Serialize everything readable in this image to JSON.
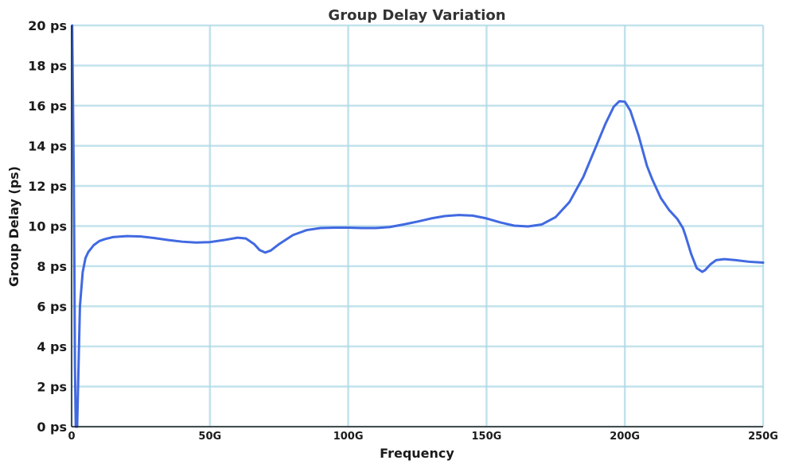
{
  "chart_data": {
    "type": "line",
    "title": "Group Delay Variation",
    "xlabel": "Frequency",
    "ylabel": "Group Delay (ps)",
    "xlim": [
      0,
      250
    ],
    "ylim": [
      0,
      20
    ],
    "x_ticks": [
      0,
      50,
      100,
      150,
      200,
      250
    ],
    "x_tick_labels": [
      "0",
      "50G",
      "100G",
      "150G",
      "200G",
      "250G"
    ],
    "y_ticks": [
      0,
      2,
      4,
      6,
      8,
      10,
      12,
      14,
      16,
      18,
      20
    ],
    "y_tick_labels": [
      "0 ps",
      "2 ps",
      "4 ps",
      "6 ps",
      "8 ps",
      "10 ps",
      "12 ps",
      "14 ps",
      "16 ps",
      "18 ps",
      "20 ps"
    ],
    "grid": true,
    "series": [
      {
        "color": "#4169e1",
        "x": [
          0.2,
          0.5,
          0.8,
          1.0,
          1.2,
          1.5,
          2.0,
          2.5,
          3.0,
          4.0,
          5.0,
          6.0,
          8.0,
          10.0,
          12.0,
          15.0,
          20.0,
          25.0,
          30.0,
          35.0,
          40.0,
          45.0,
          50.0,
          55.0,
          60.0,
          63.0,
          66.0,
          68.0,
          70.0,
          72.0,
          75.0,
          80.0,
          85.0,
          90.0,
          95.0,
          100.0,
          105.0,
          110.0,
          115.0,
          120.0,
          125.0,
          130.0,
          135.0,
          140.0,
          145.0,
          150.0,
          155.0,
          160.0,
          165.0,
          170.0,
          175.0,
          180.0,
          185.0,
          190.0,
          193.0,
          196.0,
          198.0,
          200.0,
          202.0,
          205.0,
          208.0,
          210.0,
          213.0,
          216.0,
          219.0,
          221.0,
          222.0,
          224.0,
          226.0,
          228.0,
          229.0,
          231.0,
          233.0,
          236.0,
          240.0,
          245.0,
          250.0
        ],
        "y": [
          20.0,
          16.0,
          12.0,
          8.0,
          3.0,
          0.0,
          0.0,
          3.0,
          6.0,
          7.7,
          8.4,
          8.7,
          9.05,
          9.25,
          9.35,
          9.45,
          9.5,
          9.48,
          9.4,
          9.3,
          9.22,
          9.18,
          9.2,
          9.3,
          9.42,
          9.38,
          9.1,
          8.8,
          8.68,
          8.78,
          9.1,
          9.55,
          9.8,
          9.9,
          9.92,
          9.92,
          9.9,
          9.9,
          9.95,
          10.08,
          10.22,
          10.38,
          10.5,
          10.55,
          10.52,
          10.38,
          10.18,
          10.02,
          9.98,
          10.08,
          10.45,
          11.2,
          12.45,
          14.1,
          15.1,
          15.95,
          16.22,
          16.2,
          15.75,
          14.5,
          13.0,
          12.3,
          11.4,
          10.8,
          10.35,
          9.9,
          9.5,
          8.6,
          7.9,
          7.72,
          7.8,
          8.1,
          8.3,
          8.35,
          8.3,
          8.22,
          8.18
        ]
      }
    ]
  }
}
